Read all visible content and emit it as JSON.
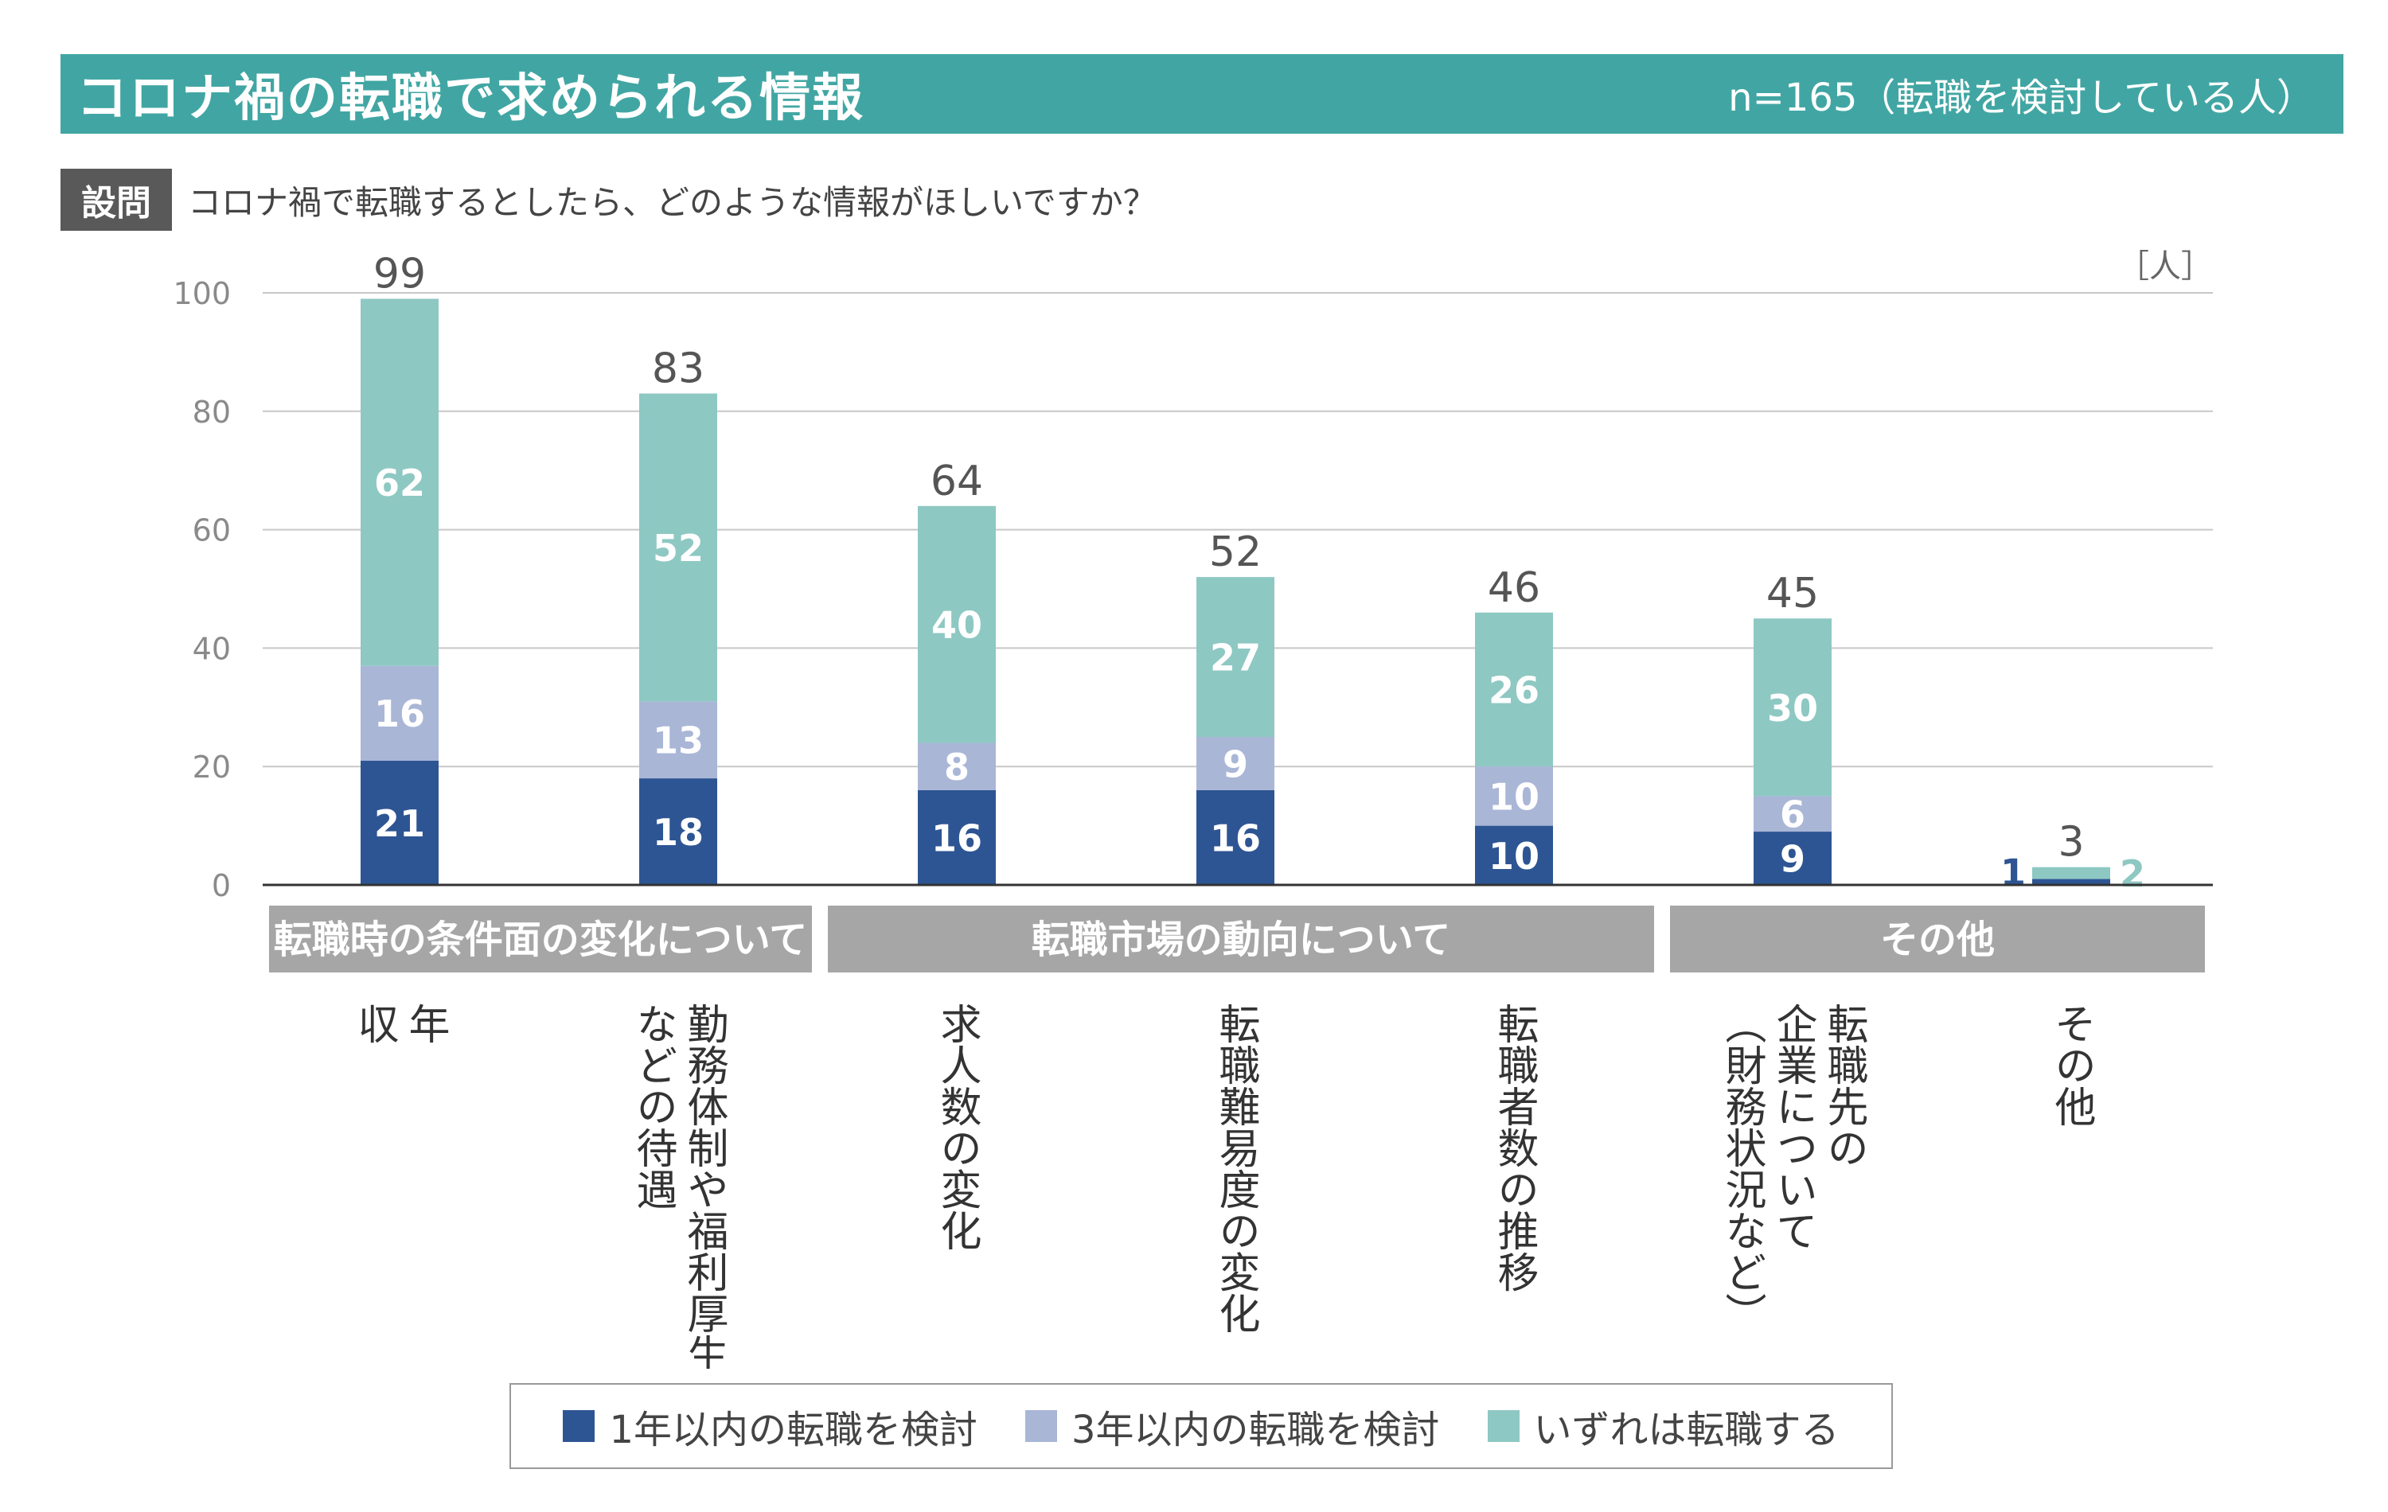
{
  "header": {
    "title": "コロナ禍の転職で求められる情報",
    "sample": "n=165（転職を検討している人）"
  },
  "question": {
    "label": "設問",
    "text": "コロナ禍で転職するとしたら、どのような情報がほしいですか？"
  },
  "colors": {
    "header_bg": "#41a6a3",
    "series": [
      "#2e5593",
      "#a9b6d6",
      "#8ec8c3"
    ],
    "group_bg": "#a6a6a6"
  },
  "chart_data": {
    "type": "bar",
    "stacked": true,
    "unit_label": "［人］",
    "ylim": [
      0,
      100
    ],
    "yticks": [
      "0",
      "20",
      "40",
      "60",
      "80",
      "100"
    ],
    "categories": [
      "年収",
      "勤務体制や福利厚生など の待遇",
      "求人数の変化",
      "転職難易度の変化",
      "転職者数の推移",
      "転職先の 企業について （財務状況など）",
      "その他"
    ],
    "category_lines": [
      [
        "年",
        "収"
      ],
      [
        "勤務体制や福利厚生",
        "などの待遇"
      ],
      [
        "求人数の変化"
      ],
      [
        "転職難易度の変化"
      ],
      [
        "転職者数の推移"
      ],
      [
        "転職先の",
        "企業について",
        "（財務状況など）"
      ],
      [
        "その他"
      ]
    ],
    "series": [
      {
        "name": "1年以内の転職を検討",
        "values": [
          21,
          18,
          16,
          16,
          10,
          9,
          1
        ]
      },
      {
        "name": "3年以内の転職を検討",
        "values": [
          16,
          13,
          8,
          9,
          10,
          6,
          0
        ]
      },
      {
        "name": "いずれは転職する",
        "values": [
          62,
          52,
          40,
          27,
          26,
          30,
          2
        ]
      }
    ],
    "totals": [
      99,
      83,
      64,
      52,
      46,
      45,
      3
    ],
    "groups": [
      {
        "label": "転職時の条件面の変化について",
        "categories": [
          0,
          1
        ]
      },
      {
        "label": "転職市場の動向について",
        "categories": [
          2,
          3,
          4
        ]
      },
      {
        "label": "その他",
        "categories": [
          5,
          6
        ]
      }
    ]
  }
}
